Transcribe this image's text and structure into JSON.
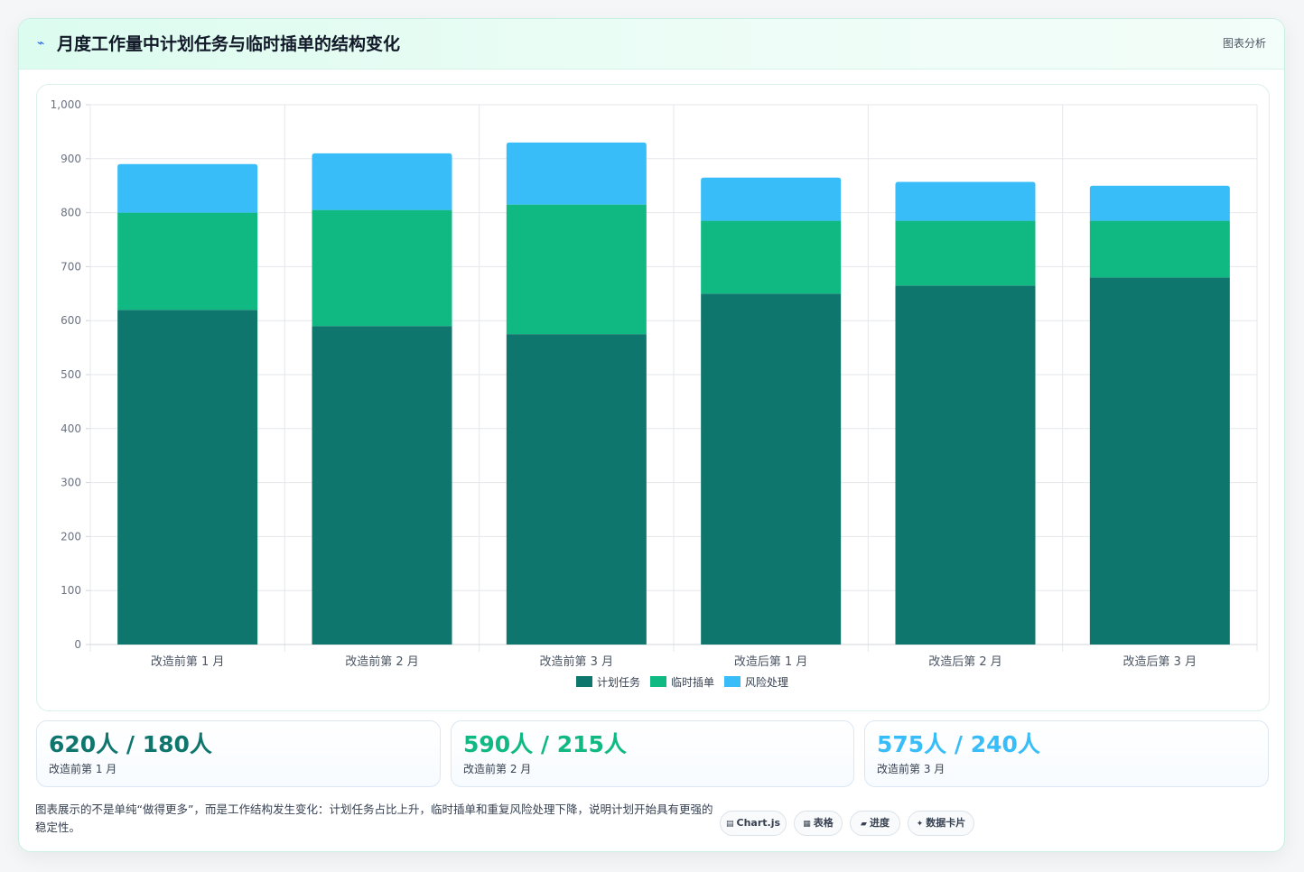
{
  "header": {
    "icon": "line-chart-icon",
    "title": "月度工作量中计划任务与临时插单的结构变化",
    "action_label": "图表分析"
  },
  "chart_data": {
    "type": "bar",
    "stacked": true,
    "categories": [
      "改造前第 1 月",
      "改造前第 2 月",
      "改造前第 3 月",
      "改造后第 1 月",
      "改造后第 2 月",
      "改造后第 3 月"
    ],
    "series": [
      {
        "name": "计划任务",
        "color": "#0f766e",
        "values": [
          620,
          590,
          575,
          650,
          665,
          680
        ]
      },
      {
        "name": "临时插单",
        "color": "#10b981",
        "values": [
          180,
          215,
          240,
          135,
          120,
          105
        ]
      },
      {
        "name": "风险处理",
        "color": "#38bdf8",
        "values": [
          90,
          105,
          115,
          80,
          72,
          65
        ]
      }
    ],
    "ylim": [
      0,
      1000
    ],
    "yticks": [
      "0",
      "100",
      "200",
      "300",
      "400",
      "500",
      "600",
      "700",
      "800",
      "900",
      "1,000"
    ],
    "grid": true,
    "legend_position": "bottom"
  },
  "stats": [
    {
      "value": "620人 / 180人",
      "label": "改造前第 1 月",
      "color": "#0f766e"
    },
    {
      "value": "590人 / 215人",
      "label": "改造前第 2 月",
      "color": "#10b981"
    },
    {
      "value": "575人 / 240人",
      "label": "改造前第 3 月",
      "color": "#38bdf8"
    }
  ],
  "footnote": "图表展示的不是单纯“做得更多”，而是工作结构发生变化：计划任务占比上升，临时插单和重复风险处理下降，说明计划开始具有更强的稳定性。",
  "chips": [
    {
      "icon": "chart-icon",
      "glyph": "▤",
      "label": "Chart.js"
    },
    {
      "icon": "table-icon",
      "glyph": "▦",
      "label": "表格"
    },
    {
      "icon": "progress-icon",
      "glyph": "▰",
      "label": "进度"
    },
    {
      "icon": "sparkle-icon",
      "glyph": "✦",
      "label": "数据卡片"
    }
  ]
}
